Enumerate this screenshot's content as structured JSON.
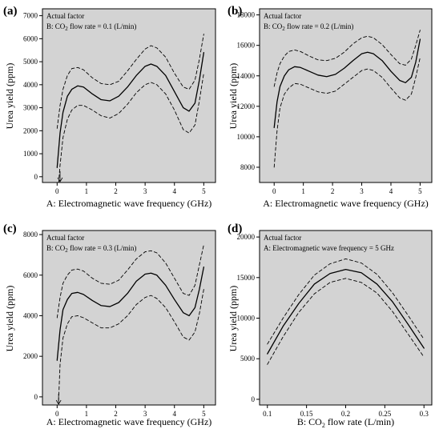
{
  "chart_data": [
    {
      "type": "line",
      "panel": "(a)",
      "note_title": "Actual factor",
      "note_prefix": "B: CO",
      "note_sub": "2",
      "note_suffix": " flow rate = 0.1 (L/min)",
      "xlabel": "A: Electromagnetic wave frequency (GHz)",
      "ylabel": "Urea yield (ppm)",
      "xlim": [
        -0.5,
        5.4
      ],
      "ylim": [
        -250,
        7300
      ],
      "xticks": [
        0,
        1,
        2,
        3,
        4,
        5
      ],
      "yticks": [
        0,
        1000,
        2000,
        3000,
        4000,
        5000,
        6000,
        7000
      ],
      "series": [
        {
          "role": "fit",
          "x": [
            0,
            0.1,
            0.2,
            0.35,
            0.5,
            0.7,
            0.9,
            1.2,
            1.5,
            1.8,
            2.1,
            2.4,
            2.7,
            3.0,
            3.2,
            3.4,
            3.7,
            4.0,
            4.3,
            4.5,
            4.7,
            4.85,
            5.0
          ],
          "y": [
            400,
            1900,
            2800,
            3500,
            3800,
            3950,
            3900,
            3600,
            3350,
            3300,
            3500,
            3900,
            4400,
            4800,
            4900,
            4800,
            4400,
            3700,
            3000,
            2850,
            3200,
            4200,
            5400
          ]
        },
        {
          "role": "ci-upper",
          "x": [
            0,
            0.1,
            0.2,
            0.35,
            0.5,
            0.7,
            0.9,
            1.2,
            1.5,
            1.8,
            2.1,
            2.4,
            2.7,
            3.0,
            3.2,
            3.4,
            3.7,
            4.0,
            4.3,
            4.5,
            4.7,
            4.85,
            5.0
          ],
          "y": [
            2100,
            3100,
            3800,
            4400,
            4700,
            4750,
            4650,
            4300,
            4050,
            4000,
            4150,
            4600,
            5100,
            5550,
            5700,
            5600,
            5200,
            4500,
            3900,
            3800,
            4200,
            5100,
            6200
          ]
        },
        {
          "role": "ci-lower",
          "x": [
            0.05,
            0.1,
            0.2,
            0.35,
            0.5,
            0.7,
            0.9,
            1.2,
            1.5,
            1.8,
            2.1,
            2.4,
            2.7,
            3.0,
            3.2,
            3.4,
            3.7,
            4.0,
            4.3,
            4.5,
            4.7,
            4.85,
            5.0
          ],
          "y": [
            -300,
            500,
            1700,
            2500,
            2900,
            3100,
            3100,
            2900,
            2650,
            2550,
            2750,
            3150,
            3650,
            4000,
            4100,
            4000,
            3600,
            2900,
            2050,
            1900,
            2250,
            3300,
            4500
          ]
        }
      ],
      "arrow_marker_x": 0.1
    },
    {
      "type": "line",
      "panel": "(b)",
      "note_title": "Actual factor",
      "note_prefix": "B: CO",
      "note_sub": "2",
      "note_suffix": " flow rate = 0.2 (L/min)",
      "xlabel": "A: Electromagnetic wave frequency (GHz)",
      "ylabel": "Urea yield (ppm)",
      "xlim": [
        -0.5,
        5.4
      ],
      "ylim": [
        7000,
        18400
      ],
      "xticks": [
        0,
        1,
        2,
        3,
        4,
        5
      ],
      "yticks": [
        8000,
        10000,
        12000,
        14000,
        16000,
        18000
      ],
      "series": [
        {
          "role": "fit",
          "x": [
            0,
            0.1,
            0.2,
            0.35,
            0.5,
            0.7,
            0.9,
            1.2,
            1.5,
            1.8,
            2.1,
            2.4,
            2.7,
            3.0,
            3.2,
            3.4,
            3.7,
            4.0,
            4.3,
            4.5,
            4.7,
            4.85,
            5.0
          ],
          "y": [
            10600,
            12300,
            13300,
            14000,
            14400,
            14600,
            14550,
            14300,
            14050,
            13950,
            14100,
            14500,
            15000,
            15450,
            15550,
            15450,
            15000,
            14300,
            13700,
            13550,
            13900,
            14900,
            16400
          ]
        },
        {
          "role": "ci-upper",
          "x": [
            0,
            0.1,
            0.2,
            0.35,
            0.5,
            0.7,
            0.9,
            1.2,
            1.5,
            1.8,
            2.1,
            2.4,
            2.7,
            3.0,
            3.2,
            3.4,
            3.7,
            4.0,
            4.3,
            4.5,
            4.7,
            4.85,
            5.0
          ],
          "y": [
            13300,
            14200,
            14800,
            15300,
            15600,
            15700,
            15600,
            15300,
            15050,
            15000,
            15150,
            15550,
            16100,
            16500,
            16600,
            16500,
            16050,
            15400,
            14800,
            14700,
            15100,
            16000,
            17000
          ]
        },
        {
          "role": "ci-lower",
          "x": [
            0,
            0.1,
            0.2,
            0.35,
            0.5,
            0.7,
            0.9,
            1.2,
            1.5,
            1.8,
            2.1,
            2.4,
            2.7,
            3.0,
            3.2,
            3.4,
            3.7,
            4.0,
            4.3,
            4.5,
            4.7,
            4.85,
            5.0
          ],
          "y": [
            8000,
            10400,
            11900,
            12800,
            13200,
            13500,
            13450,
            13200,
            12950,
            12850,
            13000,
            13450,
            13900,
            14350,
            14450,
            14350,
            13900,
            13200,
            12550,
            12400,
            12800,
            13900,
            15200
          ]
        }
      ]
    },
    {
      "type": "line",
      "panel": "(c)",
      "note_title": "Actual factor",
      "note_prefix": "B: CO",
      "note_sub": "2",
      "note_suffix": " flow rate = 0.3 (L/min)",
      "xlabel": "A: Electromagnetic wave frequency (GHz)",
      "ylabel": "Urea yield (ppm)",
      "xlim": [
        -0.5,
        5.4
      ],
      "ylim": [
        -400,
        8200
      ],
      "xticks": [
        0,
        1,
        2,
        3,
        4,
        5
      ],
      "yticks": [
        0,
        2000,
        4000,
        6000,
        8000
      ],
      "series": [
        {
          "role": "fit",
          "x": [
            0,
            0.1,
            0.2,
            0.35,
            0.5,
            0.7,
            0.9,
            1.2,
            1.5,
            1.8,
            2.1,
            2.4,
            2.7,
            3.0,
            3.2,
            3.4,
            3.7,
            4.0,
            4.3,
            4.5,
            4.7,
            4.85,
            5.0
          ],
          "y": [
            1800,
            3300,
            4300,
            4800,
            5100,
            5150,
            5050,
            4750,
            4500,
            4450,
            4650,
            5100,
            5700,
            6050,
            6100,
            6000,
            5500,
            4800,
            4150,
            4000,
            4400,
            5300,
            6400
          ]
        },
        {
          "role": "ci-upper",
          "x": [
            0,
            0.1,
            0.2,
            0.35,
            0.5,
            0.7,
            0.9,
            1.2,
            1.5,
            1.8,
            2.1,
            2.4,
            2.7,
            3.0,
            3.2,
            3.4,
            3.7,
            4.0,
            4.3,
            4.5,
            4.7,
            4.85,
            5.0
          ],
          "y": [
            3900,
            4900,
            5600,
            6000,
            6250,
            6300,
            6200,
            5850,
            5600,
            5550,
            5750,
            6250,
            6800,
            7150,
            7200,
            7100,
            6600,
            5850,
            5100,
            5000,
            5500,
            6500,
            7500
          ]
        },
        {
          "role": "ci-lower",
          "x": [
            0.05,
            0.1,
            0.2,
            0.35,
            0.5,
            0.7,
            0.9,
            1.2,
            1.5,
            1.8,
            2.1,
            2.4,
            2.7,
            3.0,
            3.2,
            3.4,
            3.7,
            4.0,
            4.3,
            4.5,
            4.7,
            4.85,
            5.0
          ],
          "y": [
            -200,
            1600,
            2900,
            3600,
            3950,
            4000,
            3900,
            3650,
            3400,
            3400,
            3600,
            4000,
            4550,
            4900,
            5000,
            4850,
            4400,
            3700,
            2950,
            2800,
            3200,
            4100,
            5300
          ]
        }
      ],
      "arrow_marker_x": 0.05
    },
    {
      "type": "line",
      "panel": "(d)",
      "note_title": "Actual factor",
      "note_prefix": "A: Electromagnetic wave frequency = 5 GHz",
      "note_sub": "",
      "note_suffix": "",
      "xlabel": "B: CO2 flow rate (L/min)",
      "ylabel": "Urea yield (ppm)",
      "xlim": [
        0.09,
        0.31
      ],
      "ylim": [
        -700,
        20800
      ],
      "xticks": [
        0.1,
        0.15,
        0.2,
        0.25,
        0.3
      ],
      "yticks": [
        0,
        5000,
        10000,
        15000,
        20000
      ],
      "series": [
        {
          "role": "fit",
          "x": [
            0.1,
            0.12,
            0.14,
            0.16,
            0.18,
            0.2,
            0.22,
            0.24,
            0.26,
            0.28,
            0.3
          ],
          "y": [
            5600,
            9000,
            11800,
            14200,
            15500,
            16000,
            15600,
            14200,
            12000,
            9200,
            6300
          ]
        },
        {
          "role": "ci-upper",
          "x": [
            0.1,
            0.12,
            0.14,
            0.16,
            0.18,
            0.2,
            0.22,
            0.24,
            0.26,
            0.28,
            0.3
          ],
          "y": [
            6800,
            10000,
            12900,
            15300,
            16700,
            17300,
            16800,
            15400,
            13100,
            10300,
            7400
          ]
        },
        {
          "role": "ci-lower",
          "x": [
            0.1,
            0.12,
            0.14,
            0.16,
            0.18,
            0.2,
            0.22,
            0.24,
            0.26,
            0.28,
            0.3
          ],
          "y": [
            4300,
            7700,
            10700,
            13000,
            14400,
            14900,
            14400,
            13100,
            10800,
            8000,
            5200
          ]
        }
      ]
    }
  ]
}
